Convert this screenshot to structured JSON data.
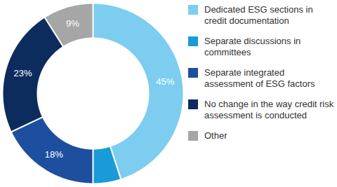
{
  "chart_data": {
    "type": "pie",
    "categories": [
      "Dedicated ESG sections in credit documentation",
      "Separate discussions in committees",
      "Separate integrated assessment of ESG factors",
      "No change in the way credit risk assessment is conducted",
      "Other"
    ],
    "values": [
      45,
      5,
      18,
      23,
      9
    ],
    "value_labels": [
      "45%",
      null,
      "18%",
      "23%",
      "9%"
    ],
    "data_labels": true,
    "colors": [
      "#7dcdf0",
      "#1a9bd7",
      "#1d4f9e",
      "#0d2c5e",
      "#a6a6a6"
    ]
  }
}
